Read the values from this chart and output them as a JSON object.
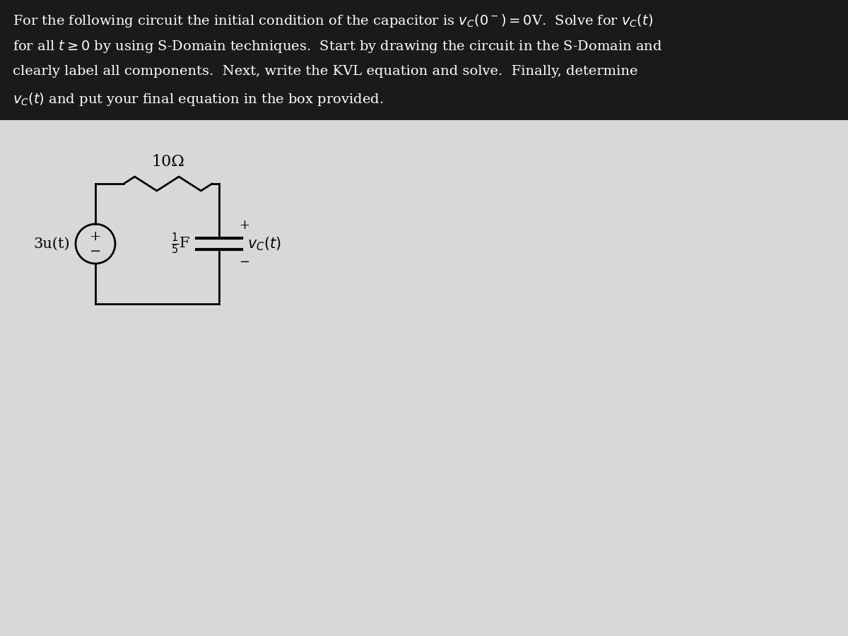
{
  "bg_color": "#d0d0d0",
  "header_bg": "#1a1a1a",
  "body_bg": "#d8d8d8",
  "text_color": "#000000",
  "header_text_color": "#ffffff",
  "title_lines": [
    "For the following circuit the initial condition of the capacitor is $v_C(0^-)=0$V.  Solve for $v_C(t)$",
    "for all $t\\geq0$ by using S-Domain techniques.  Start by drawing the circuit in the S-Domain and",
    "clearly label all components.  Next, write the KVL equation and solve.  Finally, determine",
    "$v_C(t)$ and put your final equation in the box provided."
  ],
  "resistor_label": "10Ω",
  "capacitor_label": "$\\frac{1}{5}$F",
  "source_label": "3u(t)",
  "vc_label": "$v_C(t)$",
  "line_color": "#000000",
  "lw": 2.0
}
